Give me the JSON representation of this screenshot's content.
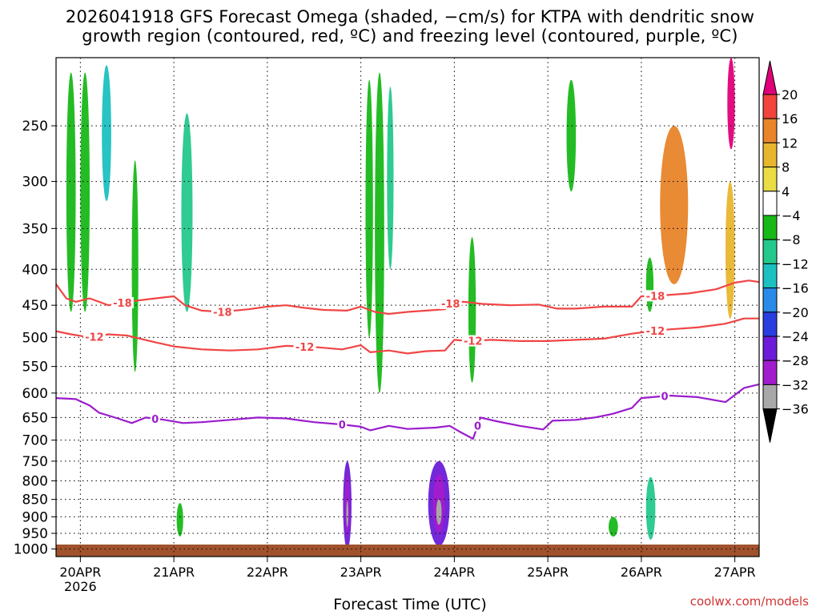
{
  "chart_data": {
    "type": "heatmap",
    "title_line1": "2026041918 GFS Forecast Omega (shaded, −cm/s) for KTPA with dendritic snow",
    "title_line2": "growth region (contoured, red, ºC) and freezing level (contoured, purple, ºC)",
    "xlabel": "Forecast Time (UTC)",
    "x_ticks": [
      "20APR",
      "21APR",
      "22APR",
      "23APR",
      "24APR",
      "25APR",
      "26APR",
      "27APR"
    ],
    "x_year": "2026",
    "x_range_days": [
      -0.26,
      7.26
    ],
    "y_ticks": [
      250,
      300,
      350,
      400,
      450,
      500,
      550,
      600,
      650,
      700,
      750,
      800,
      850,
      900,
      950,
      1000
    ],
    "y_range_hPa": [
      200,
      1025
    ],
    "colorbar": {
      "labels": [
        20,
        16,
        12,
        8,
        4,
        -4,
        -8,
        -12,
        -16,
        -20,
        -24,
        -28,
        -32,
        -36
      ],
      "colors": [
        "#e0007a",
        "#f0443c",
        "#e8842a",
        "#e8b62e",
        "#e9dc45",
        "#ffffff",
        "#18b818",
        "#24c88c",
        "#1cc0c0",
        "#2a8ae8",
        "#2a3ee0",
        "#6c1cd8",
        "#a01ccc",
        "#a8a8a8",
        "#000000"
      ]
    },
    "contours": [
      {
        "label": "-18",
        "color": "#f04545",
        "points": [
          [
            -0.26,
            420
          ],
          [
            -0.15,
            440
          ],
          [
            -0.05,
            445
          ],
          [
            0.1,
            440
          ],
          [
            0.3,
            450
          ],
          [
            0.5,
            445
          ],
          [
            0.8,
            440
          ],
          [
            1.0,
            437
          ],
          [
            1.12,
            450
          ],
          [
            1.3,
            458
          ],
          [
            1.5,
            460
          ],
          [
            1.8,
            456
          ],
          [
            2.0,
            452
          ],
          [
            2.2,
            450
          ],
          [
            2.4,
            454
          ],
          [
            2.6,
            457
          ],
          [
            2.85,
            458
          ],
          [
            3.0,
            452
          ],
          [
            3.15,
            460
          ],
          [
            3.3,
            463
          ],
          [
            3.5,
            460
          ],
          [
            3.7,
            458
          ],
          [
            3.9,
            456
          ],
          [
            3.97,
            446
          ],
          [
            4.1,
            445
          ],
          [
            4.3,
            448
          ],
          [
            4.6,
            450
          ],
          [
            4.9,
            449
          ],
          [
            5.1,
            455
          ],
          [
            5.3,
            455
          ],
          [
            5.6,
            452
          ],
          [
            5.9,
            452
          ],
          [
            6.0,
            437
          ],
          [
            6.2,
            436
          ],
          [
            6.5,
            433
          ],
          [
            6.8,
            427
          ],
          [
            7.0,
            418
          ],
          [
            7.15,
            415
          ],
          [
            7.26,
            417
          ]
        ],
        "labels_at": [
          0.45,
          1.52,
          3.96,
          6.15
        ]
      },
      {
        "label": "-12",
        "color": "#f04545",
        "points": [
          [
            -0.26,
            490
          ],
          [
            -0.1,
            495
          ],
          [
            0.1,
            500
          ],
          [
            0.3,
            495
          ],
          [
            0.5,
            497
          ],
          [
            0.8,
            508
          ],
          [
            1.0,
            515
          ],
          [
            1.3,
            520
          ],
          [
            1.6,
            522
          ],
          [
            1.9,
            520
          ],
          [
            2.2,
            514
          ],
          [
            2.5,
            516
          ],
          [
            2.8,
            520
          ],
          [
            3.0,
            513
          ],
          [
            3.1,
            525
          ],
          [
            3.3,
            522
          ],
          [
            3.5,
            527
          ],
          [
            3.7,
            523
          ],
          [
            3.9,
            522
          ],
          [
            4.0,
            504
          ],
          [
            4.15,
            506
          ],
          [
            4.4,
            504
          ],
          [
            4.7,
            506
          ],
          [
            5.0,
            506
          ],
          [
            5.3,
            504
          ],
          [
            5.6,
            502
          ],
          [
            5.9,
            494
          ],
          [
            6.1,
            490
          ],
          [
            6.3,
            487
          ],
          [
            6.6,
            484
          ],
          [
            6.9,
            478
          ],
          [
            7.1,
            470
          ],
          [
            7.26,
            470
          ]
        ],
        "labels_at": [
          0.15,
          2.4,
          4.2,
          6.15
        ]
      },
      {
        "label": "0",
        "color": "#9a1ccc",
        "points": [
          [
            -0.26,
            610
          ],
          [
            -0.05,
            612
          ],
          [
            0.1,
            625
          ],
          [
            0.2,
            640
          ],
          [
            0.4,
            652
          ],
          [
            0.55,
            662
          ],
          [
            0.7,
            650
          ],
          [
            0.9,
            655
          ],
          [
            1.1,
            662
          ],
          [
            1.3,
            660
          ],
          [
            1.6,
            655
          ],
          [
            1.9,
            650
          ],
          [
            2.2,
            652
          ],
          [
            2.5,
            660
          ],
          [
            2.8,
            665
          ],
          [
            3.0,
            670
          ],
          [
            3.1,
            678
          ],
          [
            3.3,
            668
          ],
          [
            3.5,
            675
          ],
          [
            3.8,
            672
          ],
          [
            3.95,
            668
          ],
          [
            4.05,
            680
          ],
          [
            4.2,
            697
          ],
          [
            4.28,
            650
          ],
          [
            4.45,
            658
          ],
          [
            4.7,
            668
          ],
          [
            4.95,
            676
          ],
          [
            5.05,
            657
          ],
          [
            5.3,
            655
          ],
          [
            5.5,
            650
          ],
          [
            5.7,
            642
          ],
          [
            5.9,
            630
          ],
          [
            6.0,
            610
          ],
          [
            6.3,
            605
          ],
          [
            6.6,
            608
          ],
          [
            6.9,
            618
          ],
          [
            7.1,
            590
          ],
          [
            7.26,
            583
          ]
        ],
        "labels_at": [
          0.8,
          2.8,
          4.25,
          6.25
        ]
      }
    ],
    "shaded_regions": [
      {
        "x": [
          -0.15,
          -0.05
        ],
        "p": [
          210,
          460
        ],
        "v": -8
      },
      {
        "x": [
          0.0,
          0.1
        ],
        "p": [
          210,
          460
        ],
        "v": -8
      },
      {
        "x": [
          0.23,
          0.33
        ],
        "p": [
          205,
          320
        ],
        "v": -16
      },
      {
        "x": [
          0.55,
          0.62
        ],
        "p": [
          280,
          560
        ],
        "v": -8
      },
      {
        "x": [
          1.08,
          1.2
        ],
        "p": [
          240,
          460
        ],
        "v": -12
      },
      {
        "x": [
          3.05,
          3.13
        ],
        "p": [
          215,
          500
        ],
        "v": -8
      },
      {
        "x": [
          3.15,
          3.25
        ],
        "p": [
          210,
          600
        ],
        "v": -8
      },
      {
        "x": [
          3.28,
          3.35
        ],
        "p": [
          220,
          400
        ],
        "v": -12
      },
      {
        "x": [
          4.15,
          4.23
        ],
        "p": [
          360,
          580
        ],
        "v": -8
      },
      {
        "x": [
          5.2,
          5.3
        ],
        "p": [
          215,
          310
        ],
        "v": -8
      },
      {
        "x": [
          6.05,
          6.13
        ],
        "p": [
          385,
          460
        ],
        "v": -8
      },
      {
        "x": [
          6.92,
          7.0
        ],
        "p": [
          200,
          270
        ],
        "v": 20
      },
      {
        "x": [
          6.9,
          7.0
        ],
        "p": [
          300,
          470
        ],
        "v": 8
      },
      {
        "x": [
          6.2,
          6.5
        ],
        "p": [
          250,
          420
        ],
        "v": 12
      },
      {
        "x": [
          2.81,
          2.9
        ],
        "p": [
          750,
          1000
        ],
        "v": -28
      },
      {
        "x": [
          3.72,
          3.95
        ],
        "p": [
          750,
          990
        ],
        "v": -28
      },
      {
        "x": [
          1.03,
          1.1
        ],
        "p": [
          860,
          960
        ],
        "v": -8
      },
      {
        "x": [
          5.65,
          5.75
        ],
        "p": [
          900,
          960
        ],
        "v": -8
      },
      {
        "x": [
          6.05,
          6.15
        ],
        "p": [
          790,
          970
        ],
        "v": -12
      }
    ]
  }
}
